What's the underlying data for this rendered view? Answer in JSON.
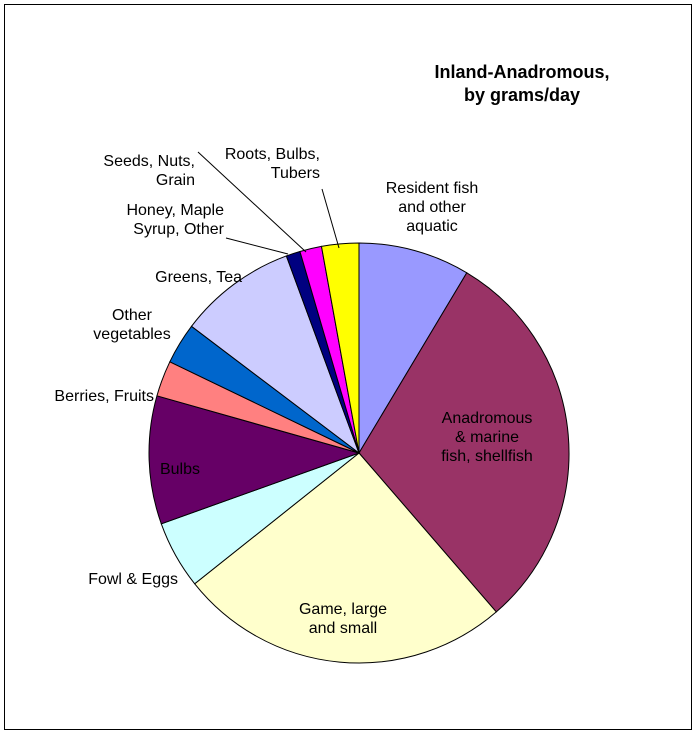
{
  "chart_data": {
    "type": "pie",
    "title": "Inland-Anadromous,\nby grams/day",
    "slices": [
      {
        "label": "Resident fish\nand other\naquatic",
        "value": 8.7,
        "color": "#9999FF"
      },
      {
        "label": "Anadromous\n& marine\nfish, shellfish",
        "value": 30.5,
        "color": "#993366"
      },
      {
        "label": "Game, large\nand small",
        "value": 26.0,
        "color": "#FFFFCC"
      },
      {
        "label": "Fowl & Eggs",
        "value": 5.3,
        "color": "#CCFFFF"
      },
      {
        "label": "Bulbs",
        "value": 10.0,
        "color": "#660066"
      },
      {
        "label": "Berries, Fruits",
        "value": 2.8,
        "color": "#FF8080"
      },
      {
        "label": "Other\nvegetables",
        "value": 3.2,
        "color": "#0066CC"
      },
      {
        "label": "Greens, Tea",
        "value": 9.2,
        "color": "#CCCCFF"
      },
      {
        "label": "Honey, Maple\nSyrup, Other",
        "value": 1.1,
        "color": "#000080"
      },
      {
        "label": "Seeds, Nuts,\nGrain",
        "value": 1.7,
        "color": "#FF00FF"
      },
      {
        "label": "Roots, Bulbs,\nTubers",
        "value": 2.9,
        "color": "#FFFF00"
      }
    ]
  }
}
